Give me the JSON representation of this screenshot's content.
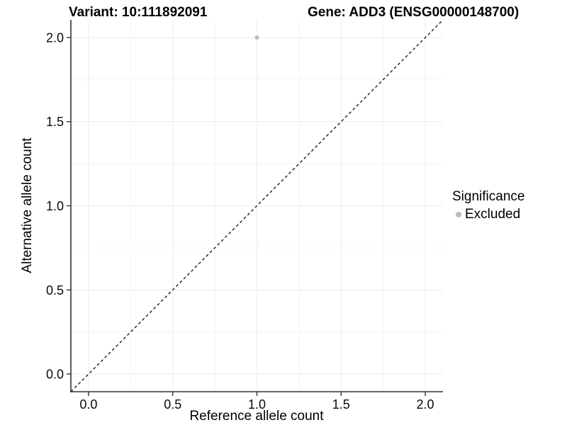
{
  "chart_data": {
    "type": "scatter",
    "title_left": "Variant: 10:111892091",
    "title_right": "Gene: ADD3 (ENSG00000148700)",
    "xlabel": "Reference allele count",
    "ylabel": "Alternative allele count",
    "xlim": [
      -0.105,
      2.105
    ],
    "ylim": [
      -0.105,
      2.105
    ],
    "xticks": {
      "values": [
        0,
        0.5,
        1,
        1.5,
        2
      ],
      "labels": [
        "0.0",
        "0.5",
        "1.0",
        "1.5",
        "2.0"
      ]
    },
    "yticks": {
      "values": [
        0,
        0.5,
        1,
        1.5,
        2
      ],
      "labels": [
        "0.0",
        "0.5",
        "1.0",
        "1.5",
        "2.0"
      ]
    },
    "minor_ticks": [
      0.25,
      0.75,
      1.25,
      1.75
    ],
    "grid": "major+minor",
    "series": [
      {
        "name": "Excluded",
        "marker": "circle",
        "color": "#bcbcbc",
        "points": [
          {
            "x": 1.0,
            "y": 2.0
          }
        ]
      }
    ],
    "reference_line": {
      "slope": 1,
      "intercept": 0,
      "linetype": "dashed",
      "color": "#1a1a1a"
    },
    "legend": {
      "title": "Significance",
      "position": "right",
      "entries": [
        {
          "label": "Excluded",
          "color": "#bcbcbc",
          "marker": "circle"
        }
      ]
    }
  },
  "colors": {
    "background": "#ffffff",
    "grid_major": "#ebebeb",
    "grid_minor": "#f4f4f4",
    "axis_line": "#333333",
    "tick_mark": "#333333",
    "text": "#000000",
    "point": "#bcbcbc"
  }
}
